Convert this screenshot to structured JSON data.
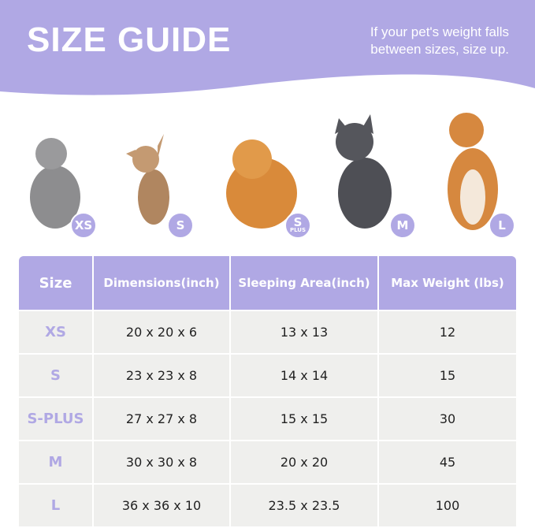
{
  "header": {
    "title": "SIZE GUIDE",
    "note_line1": "If your pet's weight falls",
    "note_line2": "between sizes, size up.",
    "accent": "#b0a8e4"
  },
  "pets": [
    {
      "animal": "cat",
      "badge": "XS",
      "sub": ""
    },
    {
      "animal": "chihuahua",
      "badge": "S",
      "sub": ""
    },
    {
      "animal": "pomeranian",
      "badge": "S",
      "sub": "PLUS"
    },
    {
      "animal": "french-bulldog",
      "badge": "M",
      "sub": ""
    },
    {
      "animal": "shiba-inu",
      "badge": "L",
      "sub": ""
    }
  ],
  "table": {
    "headers": [
      "Size",
      "Dimensions(inch)",
      "Sleeping Area(inch)",
      "Max Weight (lbs)"
    ],
    "rows": [
      [
        "XS",
        "20 x 20 x 6",
        "13 x 13",
        "12"
      ],
      [
        "S",
        "23 x 23 x 8",
        "14 x 14",
        "15"
      ],
      [
        "S-PLUS",
        "27 x 27 x 8",
        "15 x 15",
        "30"
      ],
      [
        "M",
        "30 x 30 x 8",
        "20 x 20",
        "45"
      ],
      [
        "L",
        "36 x 36 x 10",
        "23.5 x 23.5",
        "100"
      ]
    ]
  }
}
